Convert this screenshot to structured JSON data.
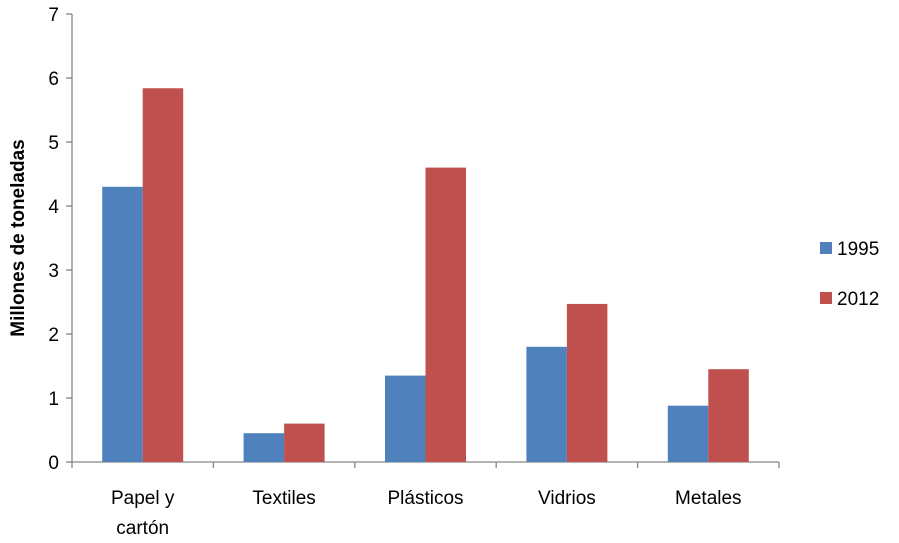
{
  "chart_data": {
    "type": "bar",
    "categories": [
      [
        "Papel y",
        "cartón"
      ],
      [
        "Textiles"
      ],
      [
        "Plásticos"
      ],
      [
        "Vidrios"
      ],
      [
        "Metales"
      ]
    ],
    "series": [
      {
        "name": "1995",
        "color": "#4F81BD",
        "values": [
          4.3,
          0.45,
          1.35,
          1.8,
          0.88
        ]
      },
      {
        "name": "2012",
        "color": "#C0504D",
        "values": [
          5.84,
          0.6,
          4.6,
          2.47,
          1.45
        ]
      }
    ],
    "title": "",
    "xlabel": "",
    "ylabel": "Millones de toneladas",
    "ylim": [
      0,
      7
    ],
    "yticks": [
      0,
      1,
      2,
      3,
      4,
      5,
      6,
      7
    ],
    "grid": false,
    "legend": "right"
  }
}
